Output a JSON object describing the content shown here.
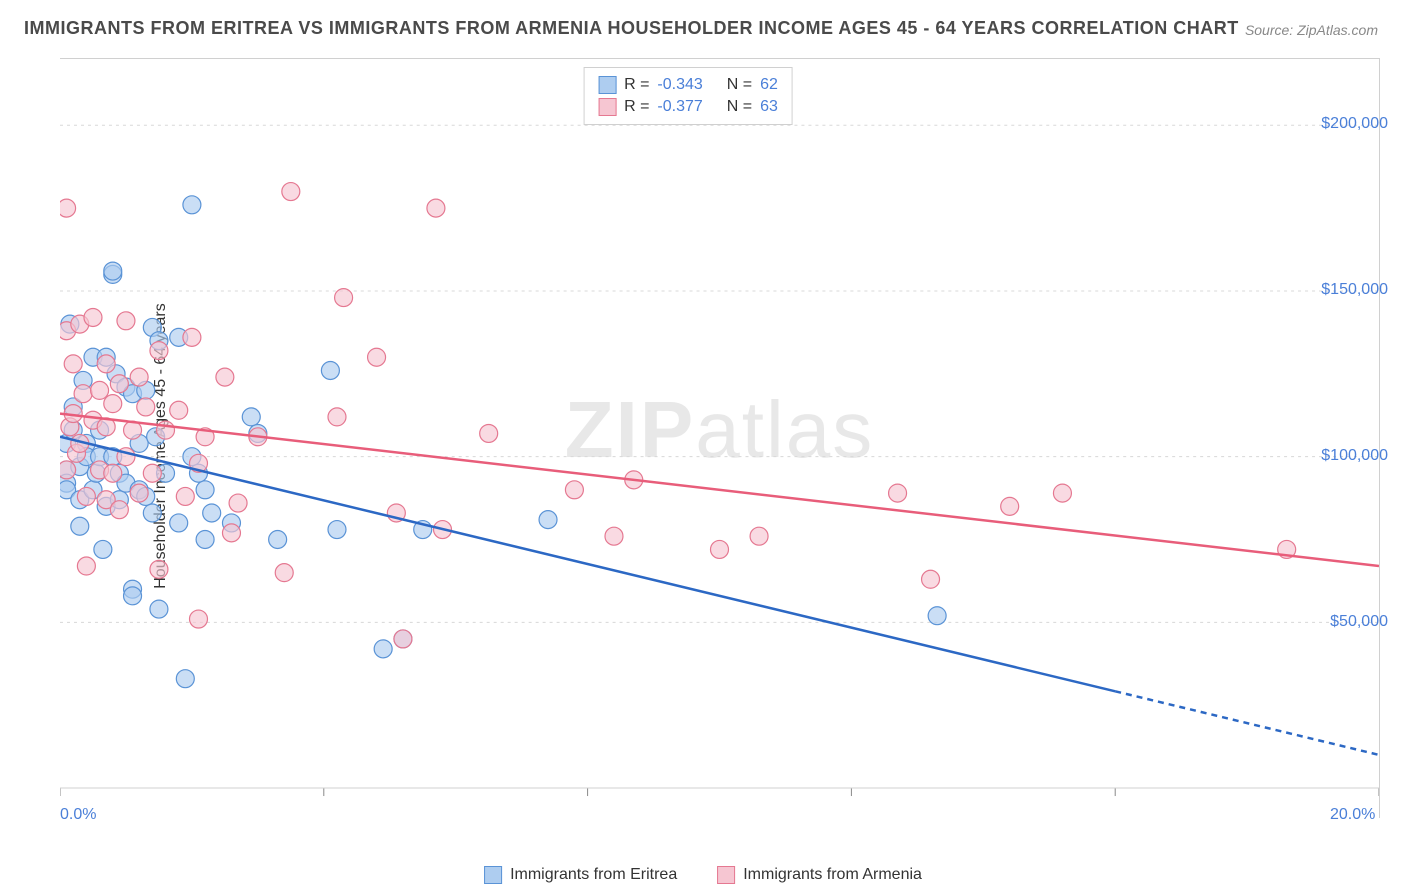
{
  "title": "IMMIGRANTS FROM ERITREA VS IMMIGRANTS FROM ARMENIA HOUSEHOLDER INCOME AGES 45 - 64 YEARS CORRELATION CHART",
  "source_label": "Source:",
  "source_value": "ZipAtlas.com",
  "watermark_a": "ZIP",
  "watermark_b": "atlas",
  "y_axis_label": "Householder Income Ages 45 - 64 years",
  "chart": {
    "type": "scatter",
    "background_color": "#ffffff",
    "grid_color": "#d8d8d8",
    "xlim": [
      0,
      20
    ],
    "ylim": [
      0,
      220000
    ],
    "x_ticks": [
      0,
      4,
      8,
      12,
      16,
      20
    ],
    "x_tick_labels_visible": {
      "0": "0.0%",
      "20": "20.0%"
    },
    "y_ticks": [
      50000,
      100000,
      150000,
      200000
    ],
    "y_tick_labels": [
      "$50,000",
      "$100,000",
      "$150,000",
      "$200,000"
    ],
    "series": [
      {
        "name": "Immigrants from Eritrea",
        "marker_fill": "#aecdf0",
        "marker_stroke": "#5a93d6",
        "marker_radius": 9,
        "line_color": "#2c68c4",
        "line_width": 2.5,
        "r_label": "R =",
        "r_value": "-0.343",
        "n_label": "N =",
        "n_value": "62",
        "trend": {
          "x1": 0,
          "y1": 106000,
          "x2": 20,
          "y2": 10000,
          "solid_until_x": 16
        },
        "points": [
          [
            0.1,
            96000
          ],
          [
            0.1,
            92000
          ],
          [
            0.1,
            104000
          ],
          [
            0.1,
            90000
          ],
          [
            0.15,
            140000
          ],
          [
            0.2,
            108000
          ],
          [
            0.2,
            115000
          ],
          [
            0.3,
            97000
          ],
          [
            0.3,
            87000
          ],
          [
            0.3,
            79000
          ],
          [
            0.35,
            123000
          ],
          [
            0.4,
            104000
          ],
          [
            0.4,
            100000
          ],
          [
            0.5,
            90000
          ],
          [
            0.5,
            130000
          ],
          [
            0.55,
            95000
          ],
          [
            0.6,
            100000
          ],
          [
            0.6,
            108000
          ],
          [
            0.65,
            72000
          ],
          [
            0.7,
            85000
          ],
          [
            0.7,
            130000
          ],
          [
            0.8,
            100000
          ],
          [
            0.8,
            155000
          ],
          [
            0.8,
            156000
          ],
          [
            0.85,
            125000
          ],
          [
            0.9,
            87000
          ],
          [
            0.9,
            95000
          ],
          [
            1.0,
            92000
          ],
          [
            1.0,
            121000
          ],
          [
            1.1,
            119000
          ],
          [
            1.1,
            60000
          ],
          [
            1.1,
            58000
          ],
          [
            1.2,
            90000
          ],
          [
            1.2,
            104000
          ],
          [
            1.3,
            88000
          ],
          [
            1.3,
            120000
          ],
          [
            1.4,
            83000
          ],
          [
            1.4,
            139000
          ],
          [
            1.45,
            106000
          ],
          [
            1.5,
            54000
          ],
          [
            1.5,
            135000
          ],
          [
            1.6,
            95000
          ],
          [
            1.8,
            80000
          ],
          [
            1.8,
            136000
          ],
          [
            1.9,
            33000
          ],
          [
            2.0,
            100000
          ],
          [
            2.0,
            176000
          ],
          [
            2.1,
            95000
          ],
          [
            2.2,
            90000
          ],
          [
            2.2,
            75000
          ],
          [
            2.3,
            83000
          ],
          [
            2.6,
            80000
          ],
          [
            2.9,
            112000
          ],
          [
            3.0,
            107000
          ],
          [
            3.3,
            75000
          ],
          [
            4.1,
            126000
          ],
          [
            4.2,
            78000
          ],
          [
            4.9,
            42000
          ],
          [
            5.2,
            45000
          ],
          [
            5.5,
            78000
          ],
          [
            7.4,
            81000
          ],
          [
            13.3,
            52000
          ]
        ]
      },
      {
        "name": "Immigrants from Armenia",
        "marker_fill": "#f6c6d2",
        "marker_stroke": "#e57891",
        "marker_radius": 9,
        "line_color": "#e85d7a",
        "line_width": 2.5,
        "r_label": "R =",
        "r_value": "-0.377",
        "n_label": "N =",
        "n_value": "63",
        "trend": {
          "x1": 0,
          "y1": 113000,
          "x2": 20,
          "y2": 67000,
          "solid_until_x": 20
        },
        "points": [
          [
            0.1,
            175000
          ],
          [
            0.1,
            138000
          ],
          [
            0.1,
            96000
          ],
          [
            0.15,
            109000
          ],
          [
            0.2,
            128000
          ],
          [
            0.2,
            113000
          ],
          [
            0.25,
            101000
          ],
          [
            0.3,
            140000
          ],
          [
            0.3,
            104000
          ],
          [
            0.35,
            119000
          ],
          [
            0.4,
            88000
          ],
          [
            0.4,
            67000
          ],
          [
            0.5,
            111000
          ],
          [
            0.5,
            142000
          ],
          [
            0.6,
            120000
          ],
          [
            0.6,
            96000
          ],
          [
            0.7,
            87000
          ],
          [
            0.7,
            128000
          ],
          [
            0.7,
            109000
          ],
          [
            0.8,
            116000
          ],
          [
            0.8,
            95000
          ],
          [
            0.9,
            122000
          ],
          [
            0.9,
            84000
          ],
          [
            1.0,
            141000
          ],
          [
            1.0,
            100000
          ],
          [
            1.1,
            108000
          ],
          [
            1.2,
            89000
          ],
          [
            1.2,
            124000
          ],
          [
            1.3,
            115000
          ],
          [
            1.4,
            95000
          ],
          [
            1.5,
            132000
          ],
          [
            1.5,
            66000
          ],
          [
            1.6,
            108000
          ],
          [
            1.8,
            114000
          ],
          [
            1.9,
            88000
          ],
          [
            2.0,
            136000
          ],
          [
            2.1,
            98000
          ],
          [
            2.1,
            51000
          ],
          [
            2.2,
            106000
          ],
          [
            2.5,
            124000
          ],
          [
            2.6,
            77000
          ],
          [
            2.7,
            86000
          ],
          [
            3.0,
            106000
          ],
          [
            3.4,
            65000
          ],
          [
            3.5,
            180000
          ],
          [
            4.2,
            112000
          ],
          [
            4.3,
            148000
          ],
          [
            4.8,
            130000
          ],
          [
            5.1,
            83000
          ],
          [
            5.2,
            45000
          ],
          [
            5.7,
            175000
          ],
          [
            5.8,
            78000
          ],
          [
            6.5,
            107000
          ],
          [
            7.8,
            90000
          ],
          [
            8.4,
            76000
          ],
          [
            8.7,
            93000
          ],
          [
            10.0,
            72000
          ],
          [
            10.6,
            76000
          ],
          [
            12.7,
            89000
          ],
          [
            13.2,
            63000
          ],
          [
            14.4,
            85000
          ],
          [
            15.2,
            89000
          ],
          [
            18.6,
            72000
          ]
        ]
      }
    ]
  }
}
